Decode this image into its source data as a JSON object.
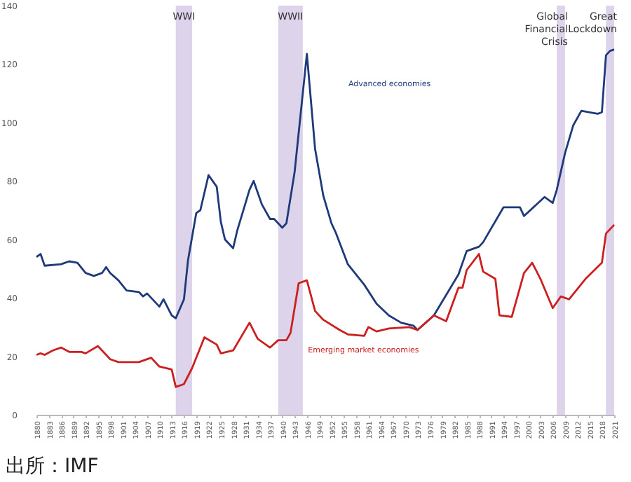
{
  "chart_data": {
    "type": "line",
    "xlim": [
      1880,
      2021
    ],
    "xticks": [
      1880,
      1883,
      1886,
      1889,
      1892,
      1895,
      1898,
      1901,
      1904,
      1907,
      1910,
      1913,
      1916,
      1919,
      1922,
      1925,
      1928,
      1931,
      1934,
      1937,
      1940,
      1943,
      1946,
      1949,
      1952,
      1955,
      1958,
      1961,
      1964,
      1967,
      1970,
      1973,
      1976,
      1979,
      1982,
      1985,
      1988,
      1991,
      1994,
      1997,
      2000,
      2003,
      2006,
      2009,
      2012,
      2015,
      2018,
      2021
    ],
    "ylim": [
      0,
      140
    ],
    "yticks": [
      0,
      20,
      40,
      60,
      80,
      100,
      120,
      140
    ],
    "grid": false,
    "legend": false,
    "series": [
      {
        "name": "Advanced economies",
        "color": "#1f3a7a",
        "x": [
          1880,
          1881,
          1882,
          1886,
          1888,
          1890,
          1892,
          1894,
          1896,
          1897,
          1898,
          1900,
          1902,
          1905,
          1906,
          1907,
          1910,
          1911,
          1913,
          1914,
          1916,
          1917,
          1919,
          1920,
          1922,
          1924,
          1925,
          1926,
          1928,
          1929,
          1932,
          1933,
          1935,
          1937,
          1938,
          1940,
          1941,
          1943,
          1946,
          1948,
          1950,
          1952,
          1953,
          1956,
          1960,
          1963,
          1966,
          1969,
          1972,
          1973,
          1977,
          1983,
          1985,
          1988,
          1989,
          1994,
          1998,
          1999,
          2004,
          2006,
          2007,
          2009,
          2011,
          2013,
          2015,
          2017,
          2018,
          2019,
          2020,
          2021
        ],
        "values": [
          54,
          55,
          51,
          51.5,
          52.5,
          52,
          48.5,
          47.5,
          48.5,
          50.5,
          48.5,
          46,
          42.5,
          42,
          40.5,
          41.5,
          37,
          39.5,
          34,
          33,
          39.5,
          53,
          69,
          70,
          82,
          78,
          66,
          60,
          57,
          63,
          77,
          80,
          72,
          67,
          67,
          64,
          65.5,
          83,
          123.5,
          91,
          75,
          65.5,
          62.5,
          51.5,
          44.5,
          38,
          34,
          31.5,
          30.5,
          29,
          34,
          48,
          56,
          57.5,
          59,
          71,
          71,
          68,
          74.5,
          72.5,
          77,
          89.5,
          99,
          104,
          103.5,
          103,
          103.5,
          123,
          124.5,
          125
        ]
      },
      {
        "name": "Emerging market economies",
        "color": "#cc1f1f",
        "x": [
          1880,
          1881,
          1882,
          1884,
          1886,
          1888,
          1891,
          1892,
          1895,
          1898,
          1900,
          1902,
          1905,
          1908,
          1910,
          1913,
          1914,
          1916,
          1918,
          1921,
          1924,
          1925,
          1928,
          1932,
          1934,
          1937,
          1939,
          1941,
          1942,
          1944,
          1946,
          1948,
          1950,
          1954,
          1956,
          1960,
          1961,
          1963,
          1966,
          1971,
          1973,
          1977,
          1980,
          1983,
          1984,
          1985,
          1988,
          1989,
          1992,
          1993,
          1996,
          1999,
          2001,
          2003,
          2006,
          2008,
          2010,
          2014,
          2018,
          2019,
          2021
        ],
        "values": [
          20.5,
          21,
          20.5,
          22,
          23,
          21.5,
          21.5,
          21,
          23.5,
          19,
          18,
          18,
          18,
          19.5,
          16.5,
          15.5,
          9.5,
          10.5,
          16,
          26.5,
          24,
          21,
          22,
          31.5,
          26,
          23,
          25.5,
          25.5,
          28,
          45,
          46,
          35.5,
          32.5,
          29,
          27.5,
          27,
          30,
          28.5,
          29.5,
          30,
          29,
          34,
          32,
          43.5,
          43.5,
          49.5,
          55,
          49,
          46.5,
          34,
          33.5,
          48.5,
          52,
          46.5,
          36.5,
          40.5,
          39.5,
          46.5,
          52,
          62,
          65
        ]
      }
    ],
    "bands": [
      {
        "axis": "x",
        "from": 1914,
        "to": 1918,
        "label": "WWI",
        "color": "#ddd3ea"
      },
      {
        "axis": "x",
        "from": 1939,
        "to": 1945,
        "label": "WWII",
        "color": "#ddd3ea"
      },
      {
        "axis": "x",
        "from": 2007,
        "to": 2009,
        "label": "Global Financial Crisis",
        "color": "#ddd3ea"
      },
      {
        "axis": "x",
        "from": 2019,
        "to": 2021,
        "label": "Great Lockdown",
        "color": "#ddd3ea"
      }
    ],
    "annotations": [
      "出所：IMF"
    ]
  }
}
